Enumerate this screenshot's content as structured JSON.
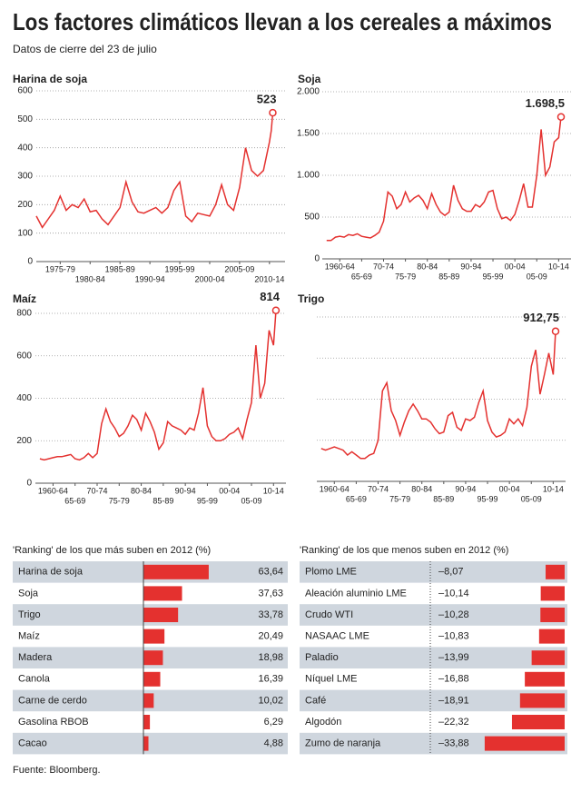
{
  "header": {
    "title": "Los factores climáticos llevan a los cereales a máximos",
    "subtitle": "Datos de cierre del 23 de julio"
  },
  "chart_data": [
    {
      "type": "line",
      "title": "Harina de soja",
      "color": "#e4312f",
      "grid": true,
      "x": [
        1973,
        1974,
        1975,
        1976,
        1977,
        1978,
        1979,
        1980,
        1981,
        1982,
        1983,
        1984,
        1985,
        1986,
        1987,
        1988,
        1989,
        1990,
        1991,
        1992,
        1993,
        1994,
        1995,
        1996,
        1997,
        1998,
        1999,
        2000,
        2001,
        2002,
        2003,
        2004,
        2005,
        2006,
        2007,
        2008,
        2009,
        2010,
        2011,
        2012,
        2012.3,
        2012.55
      ],
      "values": [
        160,
        120,
        150,
        180,
        230,
        180,
        200,
        190,
        220,
        175,
        180,
        150,
        130,
        160,
        190,
        280,
        210,
        175,
        170,
        180,
        190,
        170,
        190,
        250,
        280,
        160,
        140,
        170,
        165,
        160,
        200,
        270,
        200,
        180,
        260,
        400,
        320,
        300,
        320,
        420,
        460,
        523
      ],
      "annotation": {
        "x": 2012.55,
        "value": 523,
        "label": "523"
      },
      "xlim": [
        1973,
        2014
      ],
      "xticks": [
        {
          "value": 1977,
          "label": "1975-79"
        },
        {
          "value": 1982,
          "label": "1980-84"
        },
        {
          "value": 1987,
          "label": "1985-89"
        },
        {
          "value": 1992,
          "label": "1990-94"
        },
        {
          "value": 1997,
          "label": "1995-99"
        },
        {
          "value": 2002,
          "label": "2000-04"
        },
        {
          "value": 2007,
          "label": "2005-09"
        },
        {
          "value": 2012,
          "label": "2010-14"
        }
      ],
      "ylim": [
        0,
        600
      ],
      "yticks": [
        0,
        100,
        200,
        300,
        400,
        500,
        600
      ],
      "show_ytick_labels": true
    },
    {
      "type": "line",
      "title": "Soja",
      "color": "#e4312f",
      "grid": true,
      "x": [
        1959,
        1960,
        1961,
        1962,
        1963,
        1964,
        1965,
        1966,
        1967,
        1968,
        1969,
        1970,
        1971,
        1972,
        1973,
        1974,
        1975,
        1976,
        1977,
        1978,
        1979,
        1980,
        1981,
        1982,
        1983,
        1984,
        1985,
        1986,
        1987,
        1988,
        1989,
        1990,
        1991,
        1992,
        1993,
        1994,
        1995,
        1996,
        1997,
        1998,
        1999,
        2000,
        2001,
        2002,
        2003,
        2004,
        2005,
        2006,
        2007,
        2008,
        2009,
        2010,
        2011,
        2012,
        2012.55
      ],
      "values": [
        220,
        220,
        260,
        270,
        260,
        290,
        280,
        300,
        270,
        260,
        250,
        280,
        320,
        450,
        800,
        750,
        600,
        650,
        800,
        680,
        730,
        760,
        700,
        600,
        780,
        650,
        560,
        520,
        560,
        880,
        700,
        600,
        570,
        570,
        650,
        620,
        680,
        800,
        820,
        600,
        480,
        500,
        460,
        530,
        700,
        900,
        620,
        620,
        1000,
        1550,
        1000,
        1100,
        1400,
        1450,
        1698.5
      ],
      "annotation": {
        "x": 2012.55,
        "value": 1698.5,
        "label": "1.698,5"
      },
      "xlim": [
        1958,
        2014
      ],
      "xticks": [
        {
          "value": 1962,
          "label": "1960-64"
        },
        {
          "value": 1967,
          "label": "65-69"
        },
        {
          "value": 1972,
          "label": "70-74"
        },
        {
          "value": 1977,
          "label": "75-79"
        },
        {
          "value": 1982,
          "label": "80-84"
        },
        {
          "value": 1987,
          "label": "85-89"
        },
        {
          "value": 1992,
          "label": "90-94"
        },
        {
          "value": 1997,
          "label": "95-99"
        },
        {
          "value": 2002,
          "label": "00-04"
        },
        {
          "value": 2007,
          "label": "05-09"
        },
        {
          "value": 2012,
          "label": "10-14"
        }
      ],
      "ylim": [
        0,
        2000
      ],
      "yticks": [
        0,
        500,
        {
          "value": 1000,
          "label": "1.000"
        },
        {
          "value": 1500,
          "label": "1.500"
        },
        {
          "value": 2000,
          "label": "2.000"
        }
      ],
      "show_ytick_labels": true
    },
    {
      "type": "line",
      "title": "Maíz",
      "color": "#e4312f",
      "grid": true,
      "x": [
        1959,
        1960,
        1961,
        1962,
        1963,
        1964,
        1965,
        1966,
        1967,
        1968,
        1969,
        1970,
        1971,
        1972,
        1973,
        1974,
        1975,
        1976,
        1977,
        1978,
        1979,
        1980,
        1981,
        1982,
        1983,
        1984,
        1985,
        1986,
        1987,
        1988,
        1989,
        1990,
        1991,
        1992,
        1993,
        1994,
        1995,
        1996,
        1997,
        1998,
        1999,
        2000,
        2001,
        2002,
        2003,
        2004,
        2005,
        2006,
        2007,
        2008,
        2009,
        2010,
        2011,
        2012,
        2012.55
      ],
      "values": [
        115,
        110,
        115,
        120,
        125,
        125,
        130,
        135,
        115,
        110,
        120,
        140,
        120,
        140,
        280,
        350,
        290,
        260,
        220,
        235,
        270,
        320,
        300,
        250,
        330,
        290,
        240,
        160,
        190,
        290,
        270,
        260,
        250,
        230,
        260,
        250,
        330,
        450,
        270,
        220,
        200,
        200,
        210,
        230,
        240,
        260,
        210,
        300,
        380,
        650,
        400,
        470,
        720,
        650,
        814
      ],
      "annotation": {
        "x": 2012.55,
        "value": 814,
        "label": "814"
      },
      "xlim": [
        1958,
        2014
      ],
      "xticks": [
        {
          "value": 1962,
          "label": "1960-64"
        },
        {
          "value": 1967,
          "label": "65-69"
        },
        {
          "value": 1972,
          "label": "70-74"
        },
        {
          "value": 1977,
          "label": "75-79"
        },
        {
          "value": 1982,
          "label": "80-84"
        },
        {
          "value": 1987,
          "label": "85-89"
        },
        {
          "value": 1992,
          "label": "90-94"
        },
        {
          "value": 1997,
          "label": "95-99"
        },
        {
          "value": 2002,
          "label": "00-04"
        },
        {
          "value": 2007,
          "label": "05-09"
        },
        {
          "value": 2012,
          "label": "10-14"
        }
      ],
      "ylim": [
        0,
        800
      ],
      "yticks": [
        0,
        200,
        400,
        600,
        800
      ],
      "show_ytick_labels": true
    },
    {
      "type": "line",
      "title": "Trigo",
      "color": "#e4312f",
      "grid": true,
      "x": [
        1959,
        1960,
        1961,
        1962,
        1963,
        1964,
        1965,
        1966,
        1967,
        1968,
        1969,
        1970,
        1971,
        1972,
        1973,
        1974,
        1975,
        1976,
        1977,
        1978,
        1979,
        1980,
        1981,
        1982,
        1983,
        1984,
        1985,
        1986,
        1987,
        1988,
        1989,
        1990,
        1991,
        1992,
        1993,
        1994,
        1995,
        1996,
        1997,
        1998,
        1999,
        2000,
        2001,
        2002,
        2003,
        2004,
        2005,
        2006,
        2007,
        2008,
        2009,
        2010,
        2011,
        2012,
        2012.55
      ],
      "values": [
        200,
        190,
        200,
        210,
        200,
        190,
        160,
        180,
        160,
        140,
        140,
        160,
        170,
        250,
        550,
        600,
        430,
        370,
        280,
        360,
        430,
        470,
        430,
        380,
        380,
        360,
        320,
        290,
        300,
        400,
        420,
        330,
        310,
        380,
        370,
        390,
        480,
        550,
        370,
        300,
        270,
        280,
        300,
        380,
        350,
        380,
        340,
        450,
        700,
        800,
        530,
        650,
        780,
        650,
        912.75
      ],
      "annotation": {
        "x": 2012.55,
        "value": 912.75,
        "label": "912,75"
      },
      "xlim": [
        1958,
        2014
      ],
      "xticks": [
        {
          "value": 1962,
          "label": "1960-64"
        },
        {
          "value": 1967,
          "label": "65-69"
        },
        {
          "value": 1972,
          "label": "70-74"
        },
        {
          "value": 1977,
          "label": "75-79"
        },
        {
          "value": 1982,
          "label": "80-84"
        },
        {
          "value": 1987,
          "label": "85-89"
        },
        {
          "value": 1992,
          "label": "90-94"
        },
        {
          "value": 1997,
          "label": "95-99"
        },
        {
          "value": 2002,
          "label": "00-04"
        },
        {
          "value": 2007,
          "label": "05-09"
        },
        {
          "value": 2012,
          "label": "10-14"
        }
      ],
      "ylim": [
        0,
        1000
      ],
      "yticks": [
        0,
        250,
        500,
        750,
        1000
      ],
      "show_ytick_labels": false
    },
    {
      "type": "hbar",
      "title": "'Ranking' de los que más suben en 2012 (%)",
      "color": "#e4312f",
      "categories": [
        "Harina de soja",
        "Soja",
        "Trigo",
        "Maíz",
        "Madera",
        "Canola",
        "Carne de cerdo",
        "Gasolina RBOB",
        "Cacao"
      ],
      "values": [
        63.64,
        37.63,
        33.78,
        20.49,
        18.98,
        16.39,
        10.02,
        6.29,
        4.88
      ],
      "value_labels": [
        "63,64",
        "37,63",
        "33,78",
        "20,49",
        "18,98",
        "16,39",
        "10,02",
        "6,29",
        "4,88"
      ]
    },
    {
      "type": "hbar",
      "title": "'Ranking' de los que menos suben en 2012 (%)",
      "color": "#e4312f",
      "categories": [
        "Plomo LME",
        "Aleación aluminio LME",
        "Crudo WTI",
        "NASAAC LME",
        "Paladio",
        "Níquel LME",
        "Café",
        "Algodón",
        "Zumo de naranja"
      ],
      "values": [
        -8.07,
        -10.14,
        -10.28,
        -10.83,
        -13.99,
        -16.88,
        -18.91,
        -22.32,
        -33.88
      ],
      "value_labels": [
        "–8,07",
        "–10,14",
        "–10,28",
        "–10,83",
        "–13,99",
        "–16,88",
        "–18,91",
        "–22,32",
        "–33,88"
      ]
    }
  ],
  "source": "Fuente: Bloomberg."
}
